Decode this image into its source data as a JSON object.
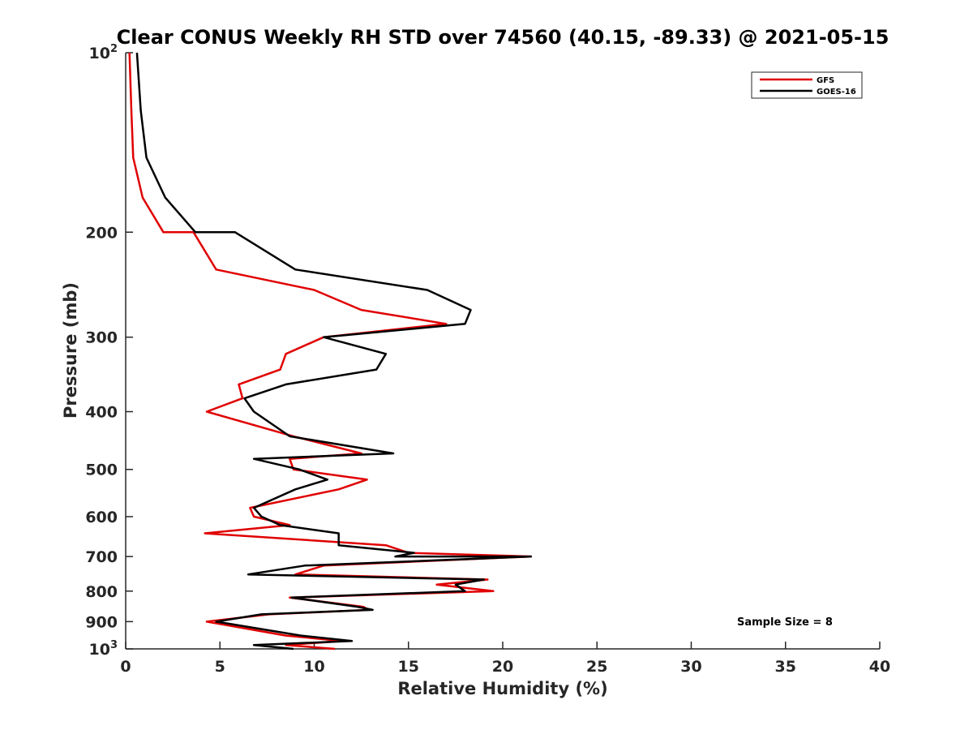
{
  "chart_data": {
    "type": "line",
    "title": "Clear CONUS Weekly RH STD over 74560 (40.15, -89.33) @ 2021-05-15",
    "xlabel": "Relative Humidity (%)",
    "ylabel": "Pressure (mb)",
    "xlim": [
      0,
      40
    ],
    "ylim": [
      100,
      1000
    ],
    "y_scale": "log",
    "y_reversed": true,
    "x_ticks": [
      "0",
      "5",
      "10",
      "15",
      "20",
      "25",
      "30",
      "35",
      "40"
    ],
    "y_ticks": [
      {
        "value": 100,
        "base": "10",
        "exp": "2"
      },
      {
        "value": 200,
        "label": "200"
      },
      {
        "value": 300,
        "label": "300"
      },
      {
        "value": 400,
        "label": "400"
      },
      {
        "value": 500,
        "label": "500"
      },
      {
        "value": 600,
        "label": "600"
      },
      {
        "value": 700,
        "label": "700"
      },
      {
        "value": 800,
        "label": "800"
      },
      {
        "value": 900,
        "label": "900"
      },
      {
        "value": 1000,
        "base": "10",
        "exp": "3"
      }
    ],
    "grid": false,
    "legend_position": "top-right",
    "annotation": "Sample Size = 8",
    "series": [
      {
        "name": "GFS",
        "color": "#e00000",
        "points": [
          [
            0.2,
            100
          ],
          [
            0.3,
            125
          ],
          [
            0.4,
            150
          ],
          [
            0.9,
            175
          ],
          [
            2.0,
            200
          ],
          [
            3.6,
            200
          ],
          [
            4.8,
            231
          ],
          [
            10.0,
            250
          ],
          [
            12.5,
            270
          ],
          [
            17.0,
            285
          ],
          [
            10.5,
            300
          ],
          [
            8.5,
            320
          ],
          [
            8.2,
            340
          ],
          [
            6.0,
            360
          ],
          [
            6.2,
            380
          ],
          [
            4.3,
            400
          ],
          [
            8.9,
            440
          ],
          [
            12.5,
            470
          ],
          [
            8.7,
            480
          ],
          [
            8.9,
            500
          ],
          [
            12.8,
            520
          ],
          [
            11.3,
            540
          ],
          [
            6.6,
            580
          ],
          [
            6.8,
            600
          ],
          [
            8.7,
            620
          ],
          [
            4.2,
            640
          ],
          [
            13.8,
            670
          ],
          [
            15.0,
            690
          ],
          [
            21.5,
            700
          ],
          [
            10.5,
            725
          ],
          [
            9.0,
            750
          ],
          [
            19.2,
            765
          ],
          [
            16.5,
            780
          ],
          [
            19.5,
            800
          ],
          [
            8.7,
            820
          ],
          [
            12.6,
            850
          ],
          [
            12.9,
            860
          ],
          [
            7.6,
            875
          ],
          [
            4.3,
            900
          ],
          [
            8.5,
            950
          ],
          [
            11.5,
            970
          ],
          [
            8.5,
            985
          ],
          [
            11.1,
            1000
          ]
        ]
      },
      {
        "name": "GOES-16",
        "color": "#000000",
        "points": [
          [
            0.6,
            100
          ],
          [
            0.8,
            125
          ],
          [
            1.1,
            150
          ],
          [
            2.1,
            175
          ],
          [
            3.7,
            200
          ],
          [
            5.8,
            200
          ],
          [
            9.0,
            231
          ],
          [
            16.0,
            250
          ],
          [
            18.3,
            270
          ],
          [
            18.0,
            285
          ],
          [
            10.5,
            300
          ],
          [
            13.8,
            320
          ],
          [
            13.3,
            340
          ],
          [
            8.5,
            360
          ],
          [
            6.3,
            380
          ],
          [
            6.8,
            400
          ],
          [
            8.7,
            440
          ],
          [
            14.2,
            470
          ],
          [
            6.8,
            480
          ],
          [
            9.2,
            500
          ],
          [
            10.7,
            520
          ],
          [
            9.0,
            540
          ],
          [
            6.8,
            580
          ],
          [
            7.2,
            600
          ],
          [
            8.2,
            620
          ],
          [
            11.3,
            640
          ],
          [
            11.3,
            670
          ],
          [
            15.3,
            690
          ],
          [
            14.3,
            700
          ],
          [
            21.5,
            700
          ],
          [
            9.5,
            725
          ],
          [
            6.5,
            750
          ],
          [
            19.0,
            765
          ],
          [
            17.5,
            780
          ],
          [
            18.0,
            800
          ],
          [
            8.8,
            820
          ],
          [
            12.3,
            850
          ],
          [
            13.1,
            860
          ],
          [
            7.2,
            875
          ],
          [
            4.8,
            900
          ],
          [
            9.3,
            950
          ],
          [
            12.0,
            970
          ],
          [
            6.8,
            985
          ],
          [
            8.9,
            1000
          ]
        ]
      }
    ]
  }
}
